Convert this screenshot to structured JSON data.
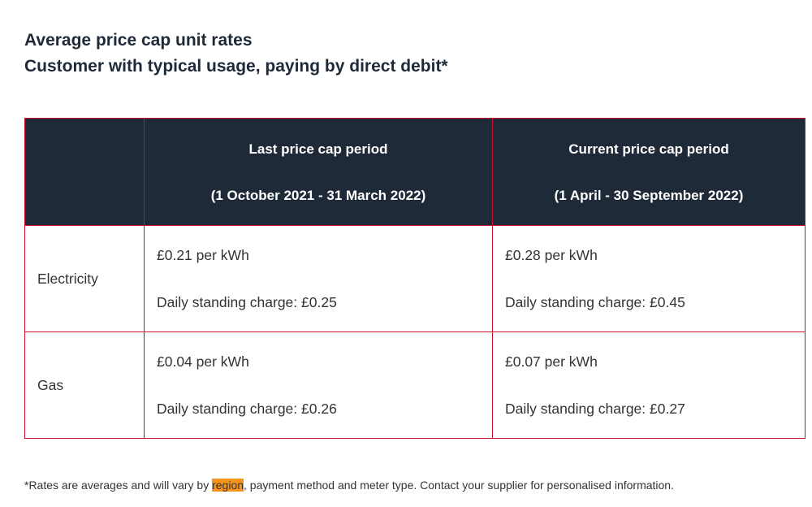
{
  "header": {
    "title_lines": [
      "Average price cap unit rates",
      "Customer with typical usage, paying by direct debit*"
    ]
  },
  "table": {
    "columns": [
      {
        "lines": [
          "Last price cap period",
          "(1 October 2021 - 31 March 2022)"
        ]
      },
      {
        "lines": [
          "Current price cap period",
          "(1 April - 30 September 2022)"
        ]
      }
    ],
    "rows": [
      {
        "label": "Electricity",
        "cells": [
          [
            "£0.21 per kWh",
            "Daily standing charge: £0.25"
          ],
          [
            "£0.28 per kWh",
            "Daily standing charge: £0.45"
          ]
        ]
      },
      {
        "label": "Gas",
        "cells": [
          [
            "£0.04 per kWh",
            "Daily standing charge: £0.26"
          ],
          [
            "£0.07 per kWh",
            "Daily standing charge: £0.27"
          ]
        ]
      }
    ]
  },
  "footnote": {
    "before": "*Rates are averages and will vary by ",
    "highlight": "region",
    "after": ", payment method and meter type. Contact your supplier for personalised information."
  }
}
